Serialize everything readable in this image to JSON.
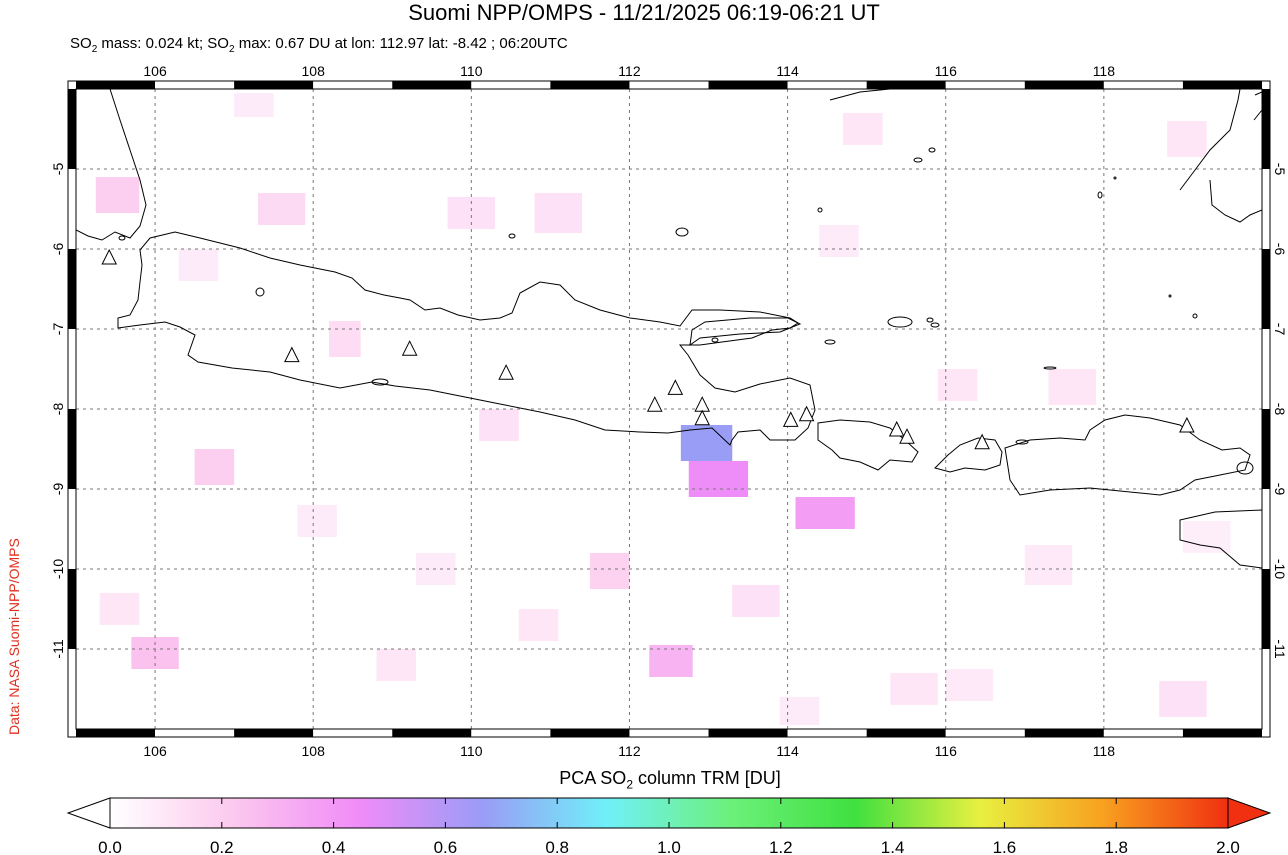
{
  "title": "Suomi NPP/OMPS - 11/21/2025 06:19-06:21 UT",
  "subtitle": {
    "part1": "SO",
    "sub1": "2",
    "part2": " mass: 0.024 kt; SO",
    "sub2": "2",
    "part3": " max: 0.67 DU at lon: 112.97 lat: -8.42 ; 06:20UTC"
  },
  "credit": "Data: NASA Suomi-NPP/OMPS",
  "map": {
    "lon_range": [
      105,
      120
    ],
    "lat_range": [
      -12,
      -4
    ],
    "lon_ticks": [
      "106",
      "108",
      "110",
      "112",
      "114",
      "116",
      "118"
    ],
    "lat_ticks": [
      "-5",
      "-6",
      "-7",
      "-8",
      "-9",
      "-10",
      "-11"
    ],
    "volcanoes": [
      {
        "lon": 105.42,
        "lat": -6.1
      },
      {
        "lon": 107.73,
        "lat": -7.32
      },
      {
        "lon": 109.22,
        "lat": -7.24
      },
      {
        "lon": 110.44,
        "lat": -7.54
      },
      {
        "lon": 112.32,
        "lat": -7.94
      },
      {
        "lon": 112.58,
        "lat": -7.73
      },
      {
        "lon": 112.92,
        "lat": -7.94
      },
      {
        "lon": 112.92,
        "lat": -8.11
      },
      {
        "lon": 114.04,
        "lat": -8.13
      },
      {
        "lon": 114.24,
        "lat": -8.06
      },
      {
        "lon": 115.38,
        "lat": -8.25
      },
      {
        "lon": 115.51,
        "lat": -8.34
      },
      {
        "lon": 116.46,
        "lat": -8.41
      },
      {
        "lon": 119.05,
        "lat": -8.2
      }
    ],
    "so2_pixels": [
      {
        "lon": [
          112.65,
          113.3
        ],
        "lat": [
          -8.2,
          -8.65
        ],
        "value": 0.67
      },
      {
        "lon": [
          112.75,
          113.5
        ],
        "lat": [
          -8.65,
          -9.1
        ],
        "value": 0.45
      },
      {
        "lon": [
          114.1,
          114.85
        ],
        "lat": [
          -9.1,
          -9.5
        ],
        "value": 0.38
      },
      {
        "lon": [
          112.25,
          112.8
        ],
        "lat": [
          -10.95,
          -11.35
        ],
        "value": 0.3
      },
      {
        "lon": [
          105.7,
          106.3
        ],
        "lat": [
          -10.85,
          -11.25
        ],
        "value": 0.25
      },
      {
        "lon": [
          105.25,
          105.8
        ],
        "lat": [
          -5.1,
          -5.55
        ],
        "value": 0.2
      },
      {
        "lon": [
          106.5,
          107.0
        ],
        "lat": [
          -8.5,
          -8.95
        ],
        "value": 0.2
      },
      {
        "lon": [
          107.3,
          107.9
        ],
        "lat": [
          -5.3,
          -5.7
        ],
        "value": 0.15
      },
      {
        "lon": [
          110.8,
          111.4
        ],
        "lat": [
          -5.3,
          -5.8
        ],
        "value": 0.12
      },
      {
        "lon": [
          109.7,
          110.3
        ],
        "lat": [
          -5.35,
          -5.75
        ],
        "value": 0.12
      },
      {
        "lon": [
          108.2,
          108.6
        ],
        "lat": [
          -6.9,
          -7.35
        ],
        "value": 0.14
      },
      {
        "lon": [
          111.5,
          112.0
        ],
        "lat": [
          -9.8,
          -10.25
        ],
        "value": 0.18
      },
      {
        "lon": [
          110.1,
          110.6
        ],
        "lat": [
          -8.0,
          -8.4
        ],
        "value": 0.12
      },
      {
        "lon": [
          113.3,
          113.9
        ],
        "lat": [
          -10.2,
          -10.6
        ],
        "value": 0.12
      },
      {
        "lon": [
          114.7,
          115.2
        ],
        "lat": [
          -4.3,
          -4.7
        ],
        "value": 0.1
      },
      {
        "lon": [
          115.9,
          116.4
        ],
        "lat": [
          -7.5,
          -7.9
        ],
        "value": 0.1
      },
      {
        "lon": [
          117.3,
          117.9
        ],
        "lat": [
          -7.5,
          -7.95
        ],
        "value": 0.1
      },
      {
        "lon": [
          118.8,
          119.3
        ],
        "lat": [
          -4.4,
          -4.85
        ],
        "value": 0.1
      },
      {
        "lon": [
          117.0,
          117.6
        ],
        "lat": [
          -9.7,
          -10.2
        ],
        "value": 0.09
      },
      {
        "lon": [
          118.7,
          119.3
        ],
        "lat": [
          -11.4,
          -11.85
        ],
        "value": 0.12
      },
      {
        "lon": [
          105.3,
          105.8
        ],
        "lat": [
          -10.3,
          -10.7
        ],
        "value": 0.1
      },
      {
        "lon": [
          109.3,
          109.8
        ],
        "lat": [
          -9.8,
          -10.2
        ],
        "value": 0.08
      },
      {
        "lon": [
          108.8,
          109.3
        ],
        "lat": [
          -11.0,
          -11.4
        ],
        "value": 0.1
      },
      {
        "lon": [
          110.6,
          111.1
        ],
        "lat": [
          -10.5,
          -10.9
        ],
        "value": 0.1
      },
      {
        "lon": [
          115.3,
          115.9
        ],
        "lat": [
          -11.3,
          -11.7
        ],
        "value": 0.1
      },
      {
        "lon": [
          116.0,
          116.6
        ],
        "lat": [
          -11.25,
          -11.65
        ],
        "value": 0.09
      },
      {
        "lon": [
          106.3,
          106.8
        ],
        "lat": [
          -6.0,
          -6.4
        ],
        "value": 0.08
      },
      {
        "lon": [
          114.4,
          114.9
        ],
        "lat": [
          -5.7,
          -6.1
        ],
        "value": 0.08
      },
      {
        "lon": [
          107.8,
          108.3
        ],
        "lat": [
          -9.2,
          -9.6
        ],
        "value": 0.08
      },
      {
        "lon": [
          119.0,
          119.6
        ],
        "lat": [
          -9.4,
          -9.8
        ],
        "value": 0.07
      },
      {
        "lon": [
          113.9,
          114.4
        ],
        "lat": [
          -11.6,
          -11.95
        ],
        "value": 0.08
      },
      {
        "lon": [
          107.0,
          107.5
        ],
        "lat": [
          -4.05,
          -4.35
        ],
        "value": 0.08
      }
    ]
  },
  "colorbar": {
    "title_part1": "PCA SO",
    "title_sub": "2",
    "title_part2": " column TRM [DU]",
    "range": [
      0.0,
      2.0
    ],
    "stops": [
      "#ffffff",
      "#fcc8ee",
      "#f08cf8",
      "#9a9cf6",
      "#70f0f8",
      "#6cf07a",
      "#40e040",
      "#e8f040",
      "#f8a020",
      "#f03010"
    ],
    "tick_labels": [
      "0.0",
      "0.2",
      "0.4",
      "0.6",
      "0.8",
      "1.0",
      "1.2",
      "1.4",
      "1.6",
      "1.8",
      "2.0"
    ]
  }
}
